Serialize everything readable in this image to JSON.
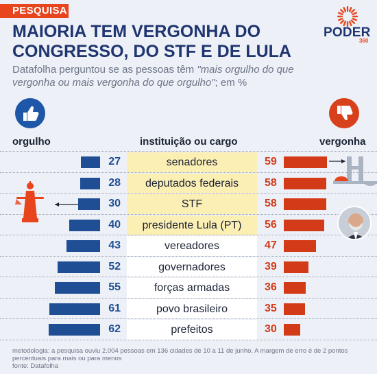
{
  "header": {
    "tag": "PESQUISA",
    "title": "MAIORIA TEM VERGONHA DO CONGRESSO, DO STF E DE LULA",
    "subtitle_prefix": "Datafolha perguntou se as pessoas têm ",
    "subtitle_quote": "\"mais orgulho do que vergonha ou mais vergonha do que orgulho\"",
    "subtitle_suffix": "; em %",
    "logo": "PODER",
    "logo_sub": "360"
  },
  "columns": {
    "left": "orgulho",
    "middle": "instituição ou cargo",
    "right": "vergonha"
  },
  "colors": {
    "orgulho": "#1f4e94",
    "vergonha": "#d33a18",
    "highlight": "#fcefb4",
    "accent": "#e8441d"
  },
  "icons": [
    "thumbs-up-icon",
    "thumbs-down-icon",
    "congress-building-icon",
    "justice-statue-icon",
    "lula-photo"
  ],
  "chart_data": {
    "type": "bar",
    "categories": [
      "senadores",
      "deputados federais",
      "STF",
      "presidente Lula (PT)",
      "vereadores",
      "governadores",
      "forças armadas",
      "povo brasileiro",
      "prefeitos"
    ],
    "highlighted": [
      "senadores",
      "deputados federais",
      "STF",
      "presidente Lula (PT)"
    ],
    "series": [
      {
        "name": "orgulho",
        "values": [
          27,
          28,
          30,
          40,
          43,
          52,
          55,
          61,
          62
        ]
      },
      {
        "name": "vergonha",
        "values": [
          59,
          58,
          58,
          56,
          47,
          39,
          36,
          35,
          30
        ]
      }
    ]
  },
  "footer": {
    "method": "metodologia: a pesquisa ouviu 2.004 pessoas em 136 cidades de 10 a 11 de junho. A margem de erro é de 2 pontos percentuais para mais ou para menos",
    "source": "fonte: Datafolha"
  }
}
